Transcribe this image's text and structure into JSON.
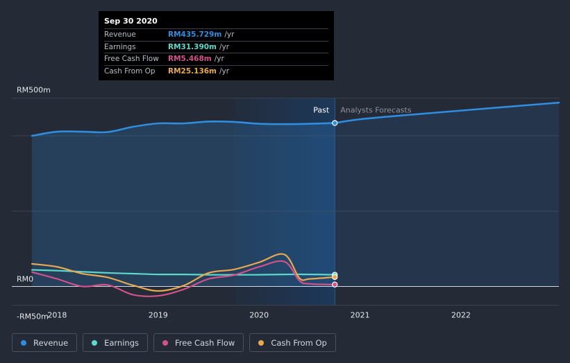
{
  "tooltip": {
    "date": "Sep 30 2020",
    "rows": [
      {
        "label": "Revenue",
        "value": "RM435.729m",
        "unit": "/yr",
        "color": "#2f8ee0"
      },
      {
        "label": "Earnings",
        "value": "RM31.390m",
        "unit": "/yr",
        "color": "#5dd9cc"
      },
      {
        "label": "Free Cash Flow",
        "value": "RM5.468m",
        "unit": "/yr",
        "color": "#d2528a"
      },
      {
        "label": "Cash From Op",
        "value": "RM25.136m",
        "unit": "/yr",
        "color": "#e8a94f"
      }
    ]
  },
  "legend": [
    {
      "label": "Revenue",
      "color": "#2f8ee0"
    },
    {
      "label": "Earnings",
      "color": "#5dd9cc"
    },
    {
      "label": "Free Cash Flow",
      "color": "#d2528a"
    },
    {
      "label": "Cash From Op",
      "color": "#e8a94f"
    }
  ],
  "chart_data": {
    "type": "line",
    "title": "",
    "xlabel": "",
    "ylabel": "",
    "x_ticks": [
      "2018",
      "2019",
      "2020",
      "2021",
      "2022"
    ],
    "y_tick_labels": [
      {
        "value": 500,
        "label": "RM500m"
      },
      {
        "value": 0,
        "label": "RM0"
      },
      {
        "value": -50,
        "label": "-RM50m"
      }
    ],
    "xlim": [
      2017.55,
      2022.97
    ],
    "ylim": [
      -50,
      500
    ],
    "divider_x": 2020.75,
    "past_label": "Past",
    "forecast_label": "Analysts Forecasts",
    "series": [
      {
        "name": "Revenue",
        "color": "#2f8ee0",
        "fill": true,
        "x": [
          2017.75,
          2018.0,
          2018.25,
          2018.5,
          2018.75,
          2019.0,
          2019.25,
          2019.5,
          2019.75,
          2020.0,
          2020.25,
          2020.5,
          2020.75
        ],
        "values": [
          400,
          411,
          411,
          410,
          424,
          433,
          433,
          438,
          437,
          432,
          431,
          432,
          434
        ]
      },
      {
        "name": "Revenue forecast",
        "color": "#2f8ee0",
        "fill": true,
        "x": [
          2020.75,
          2021.0,
          2021.5,
          2022.0,
          2022.5,
          2022.97
        ],
        "values": [
          434,
          444,
          456,
          467,
          478,
          488
        ]
      },
      {
        "name": "Earnings",
        "color": "#5dd9cc",
        "fill": false,
        "x": [
          2017.75,
          2018.0,
          2018.25,
          2018.5,
          2018.75,
          2019.0,
          2019.25,
          2019.5,
          2019.75,
          2020.0,
          2020.25,
          2020.5,
          2020.75
        ],
        "values": [
          44,
          42,
          39,
          36,
          34,
          32,
          32,
          31,
          31,
          31,
          32,
          32,
          31
        ]
      },
      {
        "name": "Free Cash Flow",
        "color": "#d2528a",
        "fill": false,
        "x": [
          2017.75,
          2018.0,
          2018.25,
          2018.5,
          2018.75,
          2019.0,
          2019.25,
          2019.5,
          2019.75,
          2020.0,
          2020.25,
          2020.4,
          2020.5,
          2020.75
        ],
        "values": [
          38,
          20,
          0,
          4,
          -22,
          -25,
          -8,
          20,
          30,
          52,
          66,
          15,
          7,
          5
        ]
      },
      {
        "name": "Cash From Op",
        "color": "#e8a94f",
        "fill": false,
        "x": [
          2017.75,
          2018.0,
          2018.25,
          2018.5,
          2018.75,
          2019.0,
          2019.25,
          2019.5,
          2019.75,
          2020.0,
          2020.25,
          2020.4,
          2020.5,
          2020.75
        ],
        "values": [
          60,
          52,
          34,
          24,
          3,
          -12,
          2,
          36,
          45,
          64,
          85,
          22,
          20,
          25
        ]
      }
    ],
    "markers": [
      {
        "series": "Revenue",
        "x": 2020.75,
        "value": 434
      },
      {
        "series": "Earnings",
        "x": 2020.75,
        "value": 31
      },
      {
        "series": "Cash From Op",
        "x": 2020.75,
        "value": 25
      },
      {
        "series": "Free Cash Flow",
        "x": 2020.75,
        "value": 5
      }
    ]
  }
}
